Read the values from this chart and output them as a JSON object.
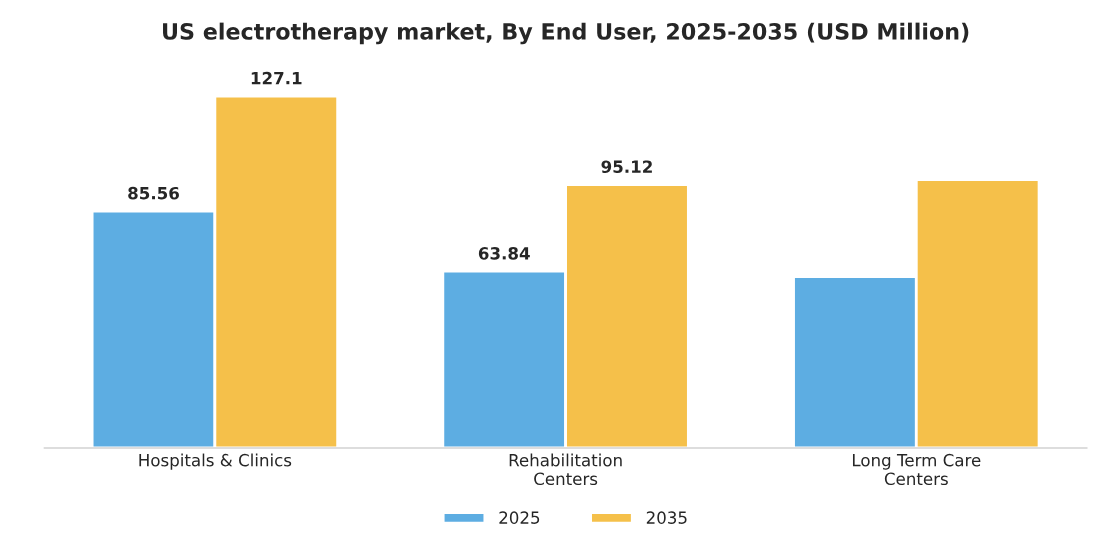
{
  "chart_data": {
    "type": "bar",
    "title": "US electrotherapy market, By End User, 2025-2035 (USD Million)",
    "categories": [
      "Hospitals & Clinics",
      "Rehabilitation\nCenters",
      "Long Term Care\nCenters"
    ],
    "series": [
      {
        "name": "2025",
        "color": "#5dade2",
        "values": [
          85.56,
          63.84,
          61.9
        ],
        "value_labels": [
          "85.56",
          "63.84",
          null
        ]
      },
      {
        "name": "2035",
        "color": "#f5c04a",
        "values": [
          127.1,
          95.12,
          96.9
        ],
        "value_labels": [
          "127.1",
          "95.12",
          null
        ]
      }
    ],
    "legend": "bottom",
    "grid": false
  }
}
